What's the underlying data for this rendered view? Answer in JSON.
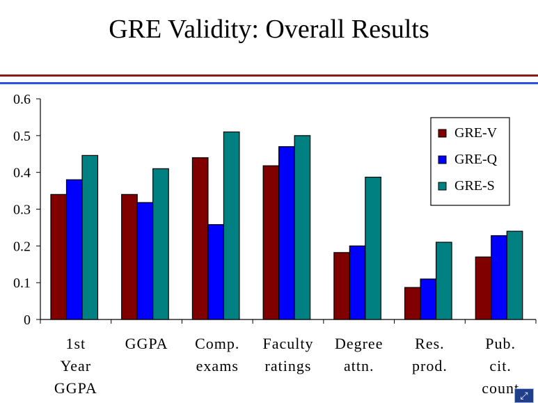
{
  "slide": {
    "title": "GRE Validity:  Overall Results"
  },
  "colors": {
    "gre_v": "#800000",
    "gre_q": "#0000ff",
    "gre_s": "#008080",
    "rule_red": "#8b1a1a",
    "rule_blue": "#2a52e0"
  },
  "icons": {
    "nav": "expand-icon"
  },
  "chart_data": {
    "type": "bar",
    "title": "",
    "xlabel": "",
    "ylabel": "",
    "ylim": [
      0,
      0.6
    ],
    "yticks": [
      "0",
      "0.1",
      "0.2",
      "0.3",
      "0.4",
      "0.5",
      "0.6"
    ],
    "legend_position": "top-right",
    "categories": [
      [
        "1st",
        "Year",
        "GGPA"
      ],
      [
        "GGPA"
      ],
      [
        "Comp.",
        "exams"
      ],
      [
        "Faculty",
        "ratings"
      ],
      [
        "Degree",
        "attn."
      ],
      [
        "Res.",
        "prod."
      ],
      [
        "Pub.",
        "cit.",
        "count"
      ]
    ],
    "series": [
      {
        "name": "GRE-V",
        "color": "#800000",
        "values": [
          0.34,
          0.34,
          0.44,
          0.418,
          0.182,
          0.087,
          0.17
        ]
      },
      {
        "name": "GRE-Q",
        "color": "#0000ff",
        "values": [
          0.38,
          0.318,
          0.258,
          0.47,
          0.2,
          0.11,
          0.228
        ]
      },
      {
        "name": "GRE-S",
        "color": "#008080",
        "values": [
          0.446,
          0.41,
          0.51,
          0.5,
          0.387,
          0.21,
          0.24
        ]
      }
    ]
  }
}
